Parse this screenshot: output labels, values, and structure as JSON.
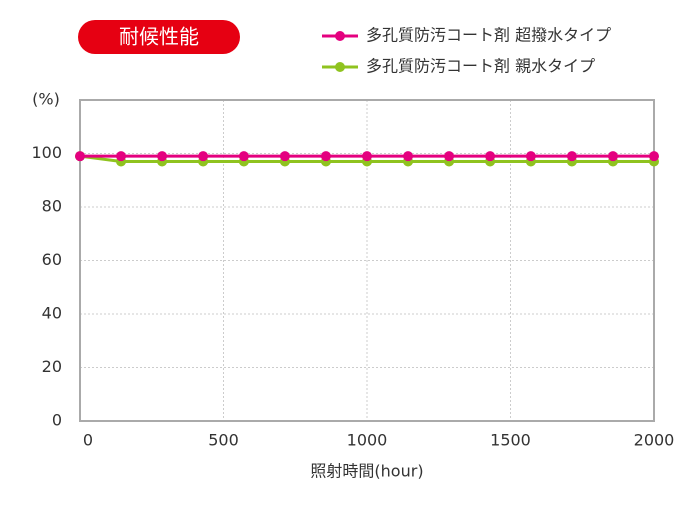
{
  "chart_data": {
    "type": "line",
    "title": "耐候性能",
    "y_unit": "(%)",
    "x_label": "照射時間(hour)",
    "x": [
      0,
      143,
      286,
      429,
      571,
      714,
      857,
      1000,
      1143,
      1286,
      1429,
      1571,
      1714,
      1857,
      2000
    ],
    "series": [
      {
        "name": "多孔質防汚コート剤 超撥水タイプ",
        "color": "#e4007f",
        "values": [
          99,
          99,
          99,
          99,
          99,
          99,
          99,
          99,
          99,
          99,
          99,
          99,
          99,
          99,
          99
        ]
      },
      {
        "name": "多孔質防汚コート剤 親水タイプ",
        "color": "#8fc31f",
        "values": [
          99,
          97,
          97,
          97,
          97,
          97,
          97,
          97,
          97,
          97,
          97,
          97,
          97,
          97,
          97
        ]
      }
    ],
    "xlim": [
      0,
      2000
    ],
    "xticks": [
      0,
      500,
      1000,
      1500,
      2000
    ],
    "ylim": [
      0,
      120
    ],
    "yticks": [
      0,
      20,
      40,
      60,
      80,
      100
    ],
    "grid": true
  }
}
